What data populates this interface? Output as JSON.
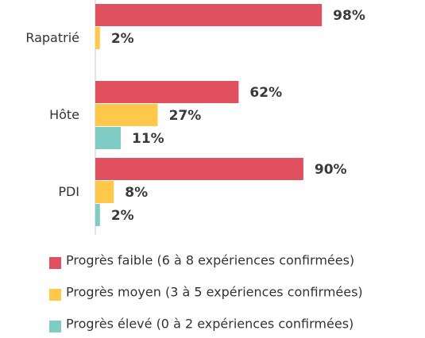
{
  "chart_data": {
    "type": "bar",
    "orientation": "horizontal",
    "categories": [
      "Rapatrié",
      "Hôte",
      "PDI"
    ],
    "series": [
      {
        "name": "Progrès faible (6 à 8 expériences confirmées)",
        "color": "#e0505e",
        "values": [
          98,
          62,
          90
        ],
        "value_labels": [
          "98%",
          "62%",
          "90%"
        ]
      },
      {
        "name": "Progrès moyen (3 à 5 expériences confirmées)",
        "color": "#fec84a",
        "values": [
          2,
          27,
          8
        ],
        "value_labels": [
          "2%",
          "27%",
          "8%"
        ]
      },
      {
        "name": "Progrès élevé (0 à 2 expériences confirmées)",
        "color": "#80cbc4",
        "values": [
          null,
          11,
          2
        ],
        "value_labels": [
          null,
          "11%",
          "2%"
        ]
      }
    ],
    "legend": "bottom"
  }
}
